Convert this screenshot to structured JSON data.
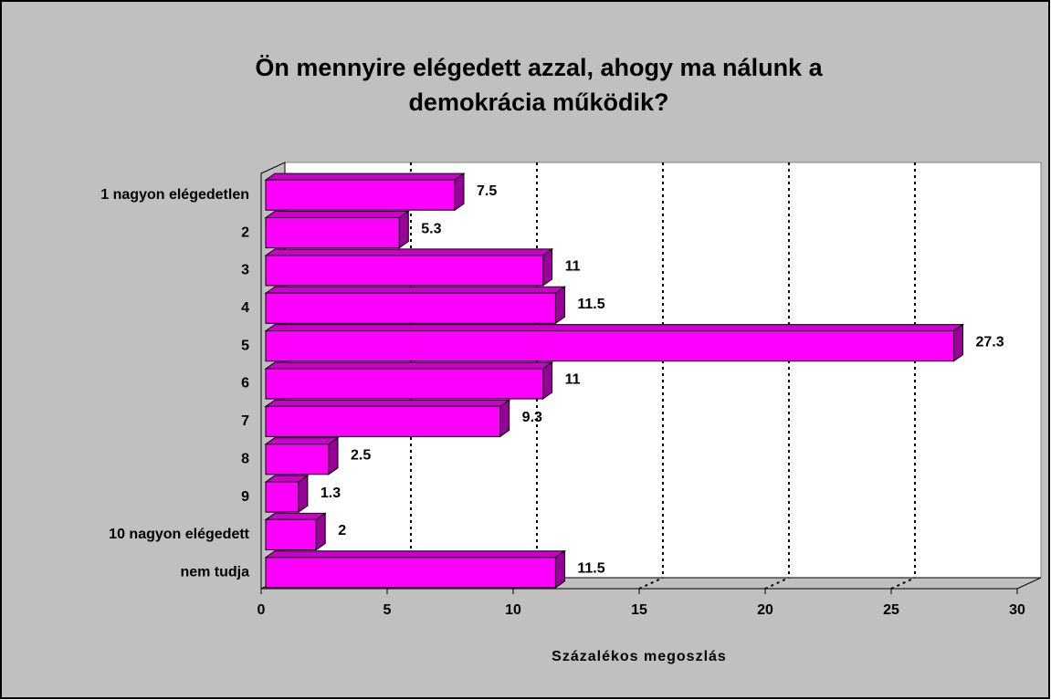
{
  "chart_data": {
    "type": "bar",
    "orientation": "horizontal",
    "title": [
      "Ön mennyire elégedett azzal, ahogy ma nálunk a",
      "demokrácia működik?"
    ],
    "x_label": "Százalékos megoszlás",
    "categories": [
      "1 nagyon elégedetlen",
      "2",
      "3",
      "4",
      "5",
      "6",
      "7",
      "8",
      "9",
      "10 nagyon elégedett",
      "nem tudja"
    ],
    "values": [
      7.5,
      5.3,
      11,
      11.5,
      27.3,
      11,
      9.3,
      2.5,
      1.3,
      2,
      11.5
    ],
    "color": "#ff00ff",
    "xlim": [
      0,
      30
    ],
    "xticks": [
      0,
      5,
      10,
      15,
      20,
      25,
      30
    ],
    "grid": true
  }
}
